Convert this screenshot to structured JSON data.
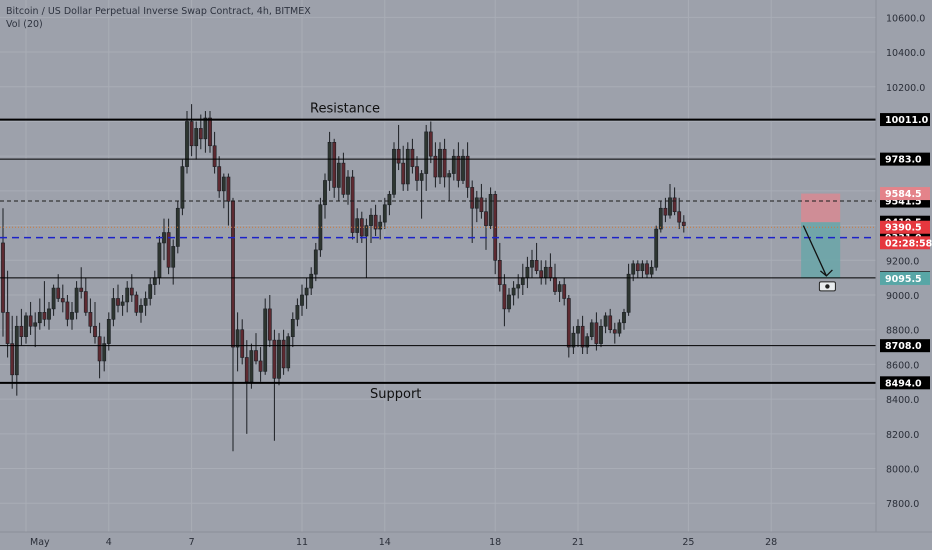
{
  "header": {
    "symbol_line": "Bitcoin / US Dollar Perpetual Inverse Swap Contract, 4h, BITMEX",
    "volume_label": "Vol (20)"
  },
  "colors": {
    "background": "#9da1ab",
    "grid": "#a9adb6",
    "candle_up": "#2d3530",
    "candle_down": "#5e2a31",
    "candle_outline": "#1b1e23",
    "level_line": "#000000",
    "dashed_black": "#1a1a1a",
    "dashed_blue": "#1c22c9",
    "dotted_orange": "#cf7a3a",
    "stop_zone": "#d88a92",
    "target_zone": "#6aa6a8",
    "label_black": "#000000",
    "label_red": "#e5373e",
    "label_blue": "#1f22e0",
    "label_pink": "#e4838a",
    "label_teal": "#58a6a6",
    "axis_text": "#2a2e38"
  },
  "annotations": {
    "resistance": "Resistance",
    "support": "Support"
  },
  "chart_data": {
    "type": "candlestick",
    "title": "Bitcoin / US Dollar Perpetual Inverse Swap Contract, 4h, BITMEX",
    "y_ticks": [
      7800,
      8000,
      8200,
      8400,
      8600,
      8800,
      9000,
      9200,
      9400,
      9600,
      9800,
      10000,
      10200,
      10400,
      10600
    ],
    "y_tick_labels": [
      "7800.0",
      "8000.0",
      "8200.0",
      "8400.0",
      "8600.0",
      "8800.0",
      "9000.0",
      "9200.0",
      "9400.0",
      "9600.0",
      "9800.0",
      "10000.0",
      "10200.0",
      "10400.0",
      "10600.0"
    ],
    "ylim": [
      7715,
      10700
    ],
    "x_ticks": [
      {
        "label": "May",
        "bar": 5
      },
      {
        "label": "4",
        "bar": 23
      },
      {
        "label": "7",
        "bar": 41
      },
      {
        "label": "11",
        "bar": 65
      },
      {
        "label": "14",
        "bar": 83
      },
      {
        "label": "18",
        "bar": 107
      },
      {
        "label": "21",
        "bar": 125
      },
      {
        "label": "25",
        "bar": 149
      },
      {
        "label": "28",
        "bar": 167
      }
    ],
    "horizontal_levels": [
      {
        "value": 10011.0,
        "label": "10011.0",
        "style": "solid-thick",
        "annotation": "Resistance"
      },
      {
        "value": 9783.0,
        "label": "9783.0",
        "style": "solid"
      },
      {
        "value": 9541.5,
        "label": "9541.5",
        "style": "dashed"
      },
      {
        "value": 9331.0,
        "label": "9331.0",
        "style": "dashed-blue"
      },
      {
        "value": 9099.0,
        "label": "9099.0",
        "style": "solid"
      },
      {
        "value": 8708.0,
        "label": "8708.0",
        "style": "solid"
      },
      {
        "value": 8494.0,
        "label": "8494.0",
        "style": "solid-thick",
        "annotation": "Support"
      }
    ],
    "price_labels": [
      {
        "value": 9584.5,
        "text": "9584.5",
        "style": "pink"
      },
      {
        "value": 9541.5,
        "text": "9541.5",
        "style": "black"
      },
      {
        "value": 9419.5,
        "text": "9419.5",
        "style": "black"
      },
      {
        "value": 9390.5,
        "text": "9390.5",
        "style": "red"
      },
      {
        "value": 9301.0,
        "text": "02:28:58",
        "style": "red"
      },
      {
        "value": 9331.0,
        "text": "9331.0",
        "style": "blue"
      },
      {
        "value": 9099.0,
        "text": "9099.0",
        "style": "black"
      },
      {
        "value": 9095.5,
        "text": "9095.5",
        "style": "teal"
      }
    ],
    "position": {
      "type": "short",
      "entry": 9419.5,
      "stop": 9584.5,
      "target": 9095.5,
      "start_bar": 173.5,
      "end_bar": 182
    },
    "projection": [
      {
        "bar": 174,
        "price": 9400
      },
      {
        "bar": 179,
        "price": 9110
      }
    ],
    "ohlc": [
      [
        9300,
        9500,
        8760,
        8900
      ],
      [
        8900,
        9140,
        8640,
        8720
      ],
      [
        8720,
        8880,
        8460,
        8540
      ],
      [
        8540,
        8880,
        8420,
        8820
      ],
      [
        8820,
        8920,
        8710,
        8760
      ],
      [
        8760,
        8900,
        8720,
        8880
      ],
      [
        8880,
        8960,
        8770,
        8820
      ],
      [
        8820,
        8900,
        8700,
        8840
      ],
      [
        8840,
        8980,
        8800,
        8900
      ],
      [
        8900,
        9080,
        8820,
        8860
      ],
      [
        8860,
        8960,
        8800,
        8920
      ],
      [
        8920,
        9060,
        8880,
        9040
      ],
      [
        9040,
        9120,
        8960,
        8980
      ],
      [
        8980,
        9060,
        8900,
        8960
      ],
      [
        8960,
        9000,
        8820,
        8860
      ],
      [
        8860,
        8960,
        8800,
        8900
      ],
      [
        8900,
        9080,
        8860,
        9040
      ],
      [
        9040,
        9160,
        8980,
        9020
      ],
      [
        9020,
        9100,
        8880,
        8900
      ],
      [
        8900,
        8980,
        8780,
        8820
      ],
      [
        8820,
        8960,
        8720,
        8760
      ],
      [
        8760,
        8840,
        8520,
        8620
      ],
      [
        8620,
        8760,
        8560,
        8720
      ],
      [
        8720,
        8900,
        8680,
        8860
      ],
      [
        8860,
        9040,
        8820,
        8980
      ],
      [
        8980,
        9060,
        8900,
        8940
      ],
      [
        8940,
        9000,
        8880,
        8960
      ],
      [
        8960,
        9080,
        8900,
        9040
      ],
      [
        9040,
        9120,
        8960,
        9000
      ],
      [
        9000,
        9020,
        8880,
        8900
      ],
      [
        8900,
        8980,
        8840,
        8940
      ],
      [
        8940,
        9020,
        8880,
        8980
      ],
      [
        8980,
        9100,
        8940,
        9060
      ],
      [
        9060,
        9140,
        9000,
        9100
      ],
      [
        9100,
        9340,
        9060,
        9300
      ],
      [
        9300,
        9440,
        9200,
        9360
      ],
      [
        9360,
        9440,
        9120,
        9160
      ],
      [
        9160,
        9320,
        9060,
        9280
      ],
      [
        9280,
        9540,
        9240,
        9500
      ],
      [
        9500,
        9780,
        9460,
        9740
      ],
      [
        9740,
        10060,
        9700,
        10000
      ],
      [
        10000,
        10100,
        9800,
        9860
      ],
      [
        9860,
        10000,
        9780,
        9960
      ],
      [
        9960,
        10040,
        9840,
        9900
      ],
      [
        9900,
        10060,
        9820,
        10020
      ],
      [
        10020,
        10060,
        9820,
        9860
      ],
      [
        9860,
        9940,
        9700,
        9740
      ],
      [
        9740,
        9800,
        9560,
        9600
      ],
      [
        9600,
        9700,
        9500,
        9680
      ],
      [
        9680,
        9700,
        9400,
        9540
      ],
      [
        9540,
        9560,
        8100,
        8700
      ],
      [
        8700,
        8900,
        8560,
        8800
      ],
      [
        8800,
        8860,
        8600,
        8640
      ],
      [
        8640,
        8740,
        8200,
        8500
      ],
      [
        8500,
        8720,
        8460,
        8680
      ],
      [
        8680,
        8780,
        8600,
        8620
      ],
      [
        8620,
        8700,
        8500,
        8560
      ],
      [
        8560,
        8980,
        8540,
        8920
      ],
      [
        8920,
        9000,
        8700,
        8740
      ],
      [
        8740,
        8800,
        8160,
        8520
      ],
      [
        8520,
        8780,
        8480,
        8740
      ],
      [
        8740,
        8800,
        8540,
        8580
      ],
      [
        8580,
        8780,
        8560,
        8760
      ],
      [
        8760,
        8900,
        8700,
        8860
      ],
      [
        8860,
        8980,
        8820,
        8940
      ],
      [
        8940,
        9060,
        8880,
        9000
      ],
      [
        9000,
        9100,
        8920,
        9040
      ],
      [
        9040,
        9160,
        9000,
        9120
      ],
      [
        9120,
        9300,
        9080,
        9260
      ],
      [
        9260,
        9560,
        9220,
        9520
      ],
      [
        9520,
        9700,
        9440,
        9660
      ],
      [
        9660,
        9940,
        9600,
        9880
      ],
      [
        9880,
        9900,
        9560,
        9620
      ],
      [
        9620,
        9800,
        9540,
        9760
      ],
      [
        9760,
        9820,
        9560,
        9580
      ],
      [
        9580,
        9720,
        9520,
        9680
      ],
      [
        9680,
        9720,
        9320,
        9360
      ],
      [
        9360,
        9500,
        9300,
        9440
      ],
      [
        9440,
        9480,
        9300,
        9340
      ],
      [
        9340,
        9440,
        9100,
        9400
      ],
      [
        9400,
        9500,
        9300,
        9460
      ],
      [
        9460,
        9520,
        9340,
        9380
      ],
      [
        9380,
        9460,
        9320,
        9420
      ],
      [
        9420,
        9560,
        9380,
        9520
      ],
      [
        9520,
        9600,
        9460,
        9580
      ],
      [
        9580,
        9880,
        9560,
        9840
      ],
      [
        9840,
        9980,
        9720,
        9760
      ],
      [
        9760,
        9860,
        9600,
        9640
      ],
      [
        9640,
        9880,
        9600,
        9840
      ],
      [
        9840,
        9900,
        9700,
        9740
      ],
      [
        9740,
        9800,
        9600,
        9660
      ],
      [
        9660,
        9720,
        9440,
        9700
      ],
      [
        9700,
        9980,
        9600,
        9940
      ],
      [
        9940,
        10000,
        9760,
        9800
      ],
      [
        9800,
        9880,
        9620,
        9680
      ],
      [
        9680,
        9880,
        9640,
        9840
      ],
      [
        9840,
        9900,
        9620,
        9680
      ],
      [
        9680,
        9720,
        9540,
        9700
      ],
      [
        9700,
        9840,
        9660,
        9800
      ],
      [
        9800,
        9880,
        9620,
        9660
      ],
      [
        9660,
        9840,
        9640,
        9800
      ],
      [
        9800,
        9880,
        9560,
        9620
      ],
      [
        9620,
        9660,
        9300,
        9500
      ],
      [
        9500,
        9600,
        9420,
        9560
      ],
      [
        9560,
        9640,
        9440,
        9480
      ],
      [
        9480,
        9560,
        9260,
        9400
      ],
      [
        9400,
        9620,
        9380,
        9580
      ],
      [
        9580,
        9600,
        9120,
        9200
      ],
      [
        9200,
        9300,
        9020,
        9060
      ],
      [
        9060,
        9120,
        8820,
        8920
      ],
      [
        8920,
        9040,
        8900,
        9000
      ],
      [
        9000,
        9080,
        8940,
        9040
      ],
      [
        9040,
        9120,
        8980,
        9060
      ],
      [
        9060,
        9180,
        9000,
        9100
      ],
      [
        9100,
        9220,
        9040,
        9160
      ],
      [
        9160,
        9260,
        9100,
        9200
      ],
      [
        9200,
        9300,
        9120,
        9140
      ],
      [
        9140,
        9200,
        9060,
        9100
      ],
      [
        9100,
        9200,
        9060,
        9160
      ],
      [
        9160,
        9240,
        9080,
        9100
      ],
      [
        9100,
        9180,
        9000,
        9020
      ],
      [
        9020,
        9080,
        8960,
        9060
      ],
      [
        9060,
        9100,
        8940,
        8980
      ],
      [
        8980,
        9000,
        8640,
        8700
      ],
      [
        8700,
        8820,
        8660,
        8780
      ],
      [
        8780,
        8860,
        8700,
        8820
      ],
      [
        8820,
        8880,
        8660,
        8700
      ],
      [
        8700,
        8780,
        8660,
        8760
      ],
      [
        8760,
        8860,
        8740,
        8840
      ],
      [
        8840,
        8900,
        8680,
        8720
      ],
      [
        8720,
        8860,
        8700,
        8820
      ],
      [
        8820,
        8900,
        8780,
        8880
      ],
      [
        8880,
        8920,
        8780,
        8800
      ],
      [
        8800,
        8840,
        8720,
        8780
      ],
      [
        8780,
        8860,
        8760,
        8840
      ],
      [
        8840,
        8920,
        8800,
        8900
      ],
      [
        8900,
        9180,
        8880,
        9120
      ],
      [
        9120,
        9200,
        9080,
        9180
      ],
      [
        9180,
        9200,
        9100,
        9140
      ],
      [
        9140,
        9200,
        9100,
        9180
      ],
      [
        9180,
        9200,
        9100,
        9120
      ],
      [
        9120,
        9200,
        9100,
        9160
      ],
      [
        9160,
        9400,
        9140,
        9380
      ],
      [
        9380,
        9540,
        9360,
        9500
      ],
      [
        9500,
        9560,
        9420,
        9460
      ],
      [
        9460,
        9640,
        9440,
        9560
      ],
      [
        9560,
        9620,
        9460,
        9480
      ],
      [
        9480,
        9560,
        9380,
        9420
      ],
      [
        9420,
        9460,
        9360,
        9400
      ]
    ]
  }
}
